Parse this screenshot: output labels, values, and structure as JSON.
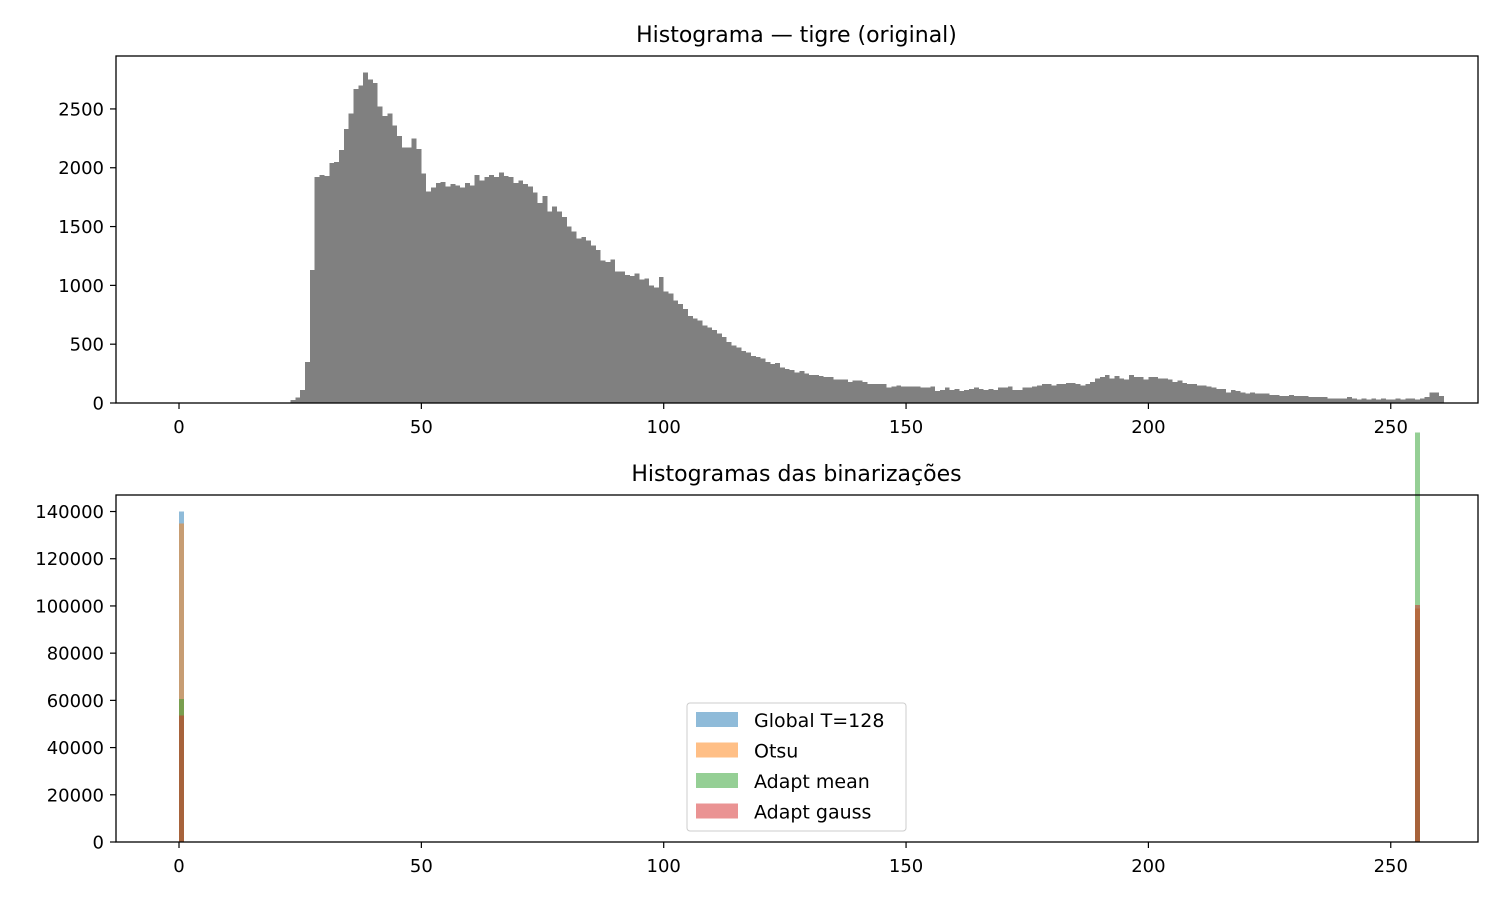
{
  "chart_data": [
    {
      "type": "bar",
      "title": "Histograma — tigre (original)",
      "xlabel": "",
      "ylabel": "",
      "xlim": [
        -13,
        268
      ],
      "ylim": [
        0,
        2950
      ],
      "xticks": [
        0,
        50,
        100,
        150,
        200,
        250
      ],
      "yticks": [
        0,
        500,
        1000,
        1500,
        2000,
        2500
      ],
      "bin_width": 1,
      "grid": false,
      "color": "#808080",
      "x_start": 0,
      "values": [
        0,
        0,
        0,
        0,
        0,
        0,
        0,
        0,
        0,
        0,
        0,
        0,
        0,
        0,
        0,
        0,
        0,
        0,
        0,
        0,
        0,
        0,
        5,
        25,
        45,
        110,
        350,
        1130,
        1920,
        1940,
        1930,
        2040,
        2050,
        2150,
        2330,
        2460,
        2670,
        2700,
        2810,
        2750,
        2720,
        2520,
        2440,
        2460,
        2360,
        2270,
        2170,
        2170,
        2250,
        2160,
        1950,
        1800,
        1830,
        1870,
        1880,
        1840,
        1860,
        1850,
        1830,
        1870,
        1850,
        1940,
        1890,
        1920,
        1940,
        1920,
        1960,
        1930,
        1920,
        1870,
        1890,
        1860,
        1840,
        1790,
        1700,
        1760,
        1630,
        1670,
        1630,
        1580,
        1500,
        1460,
        1400,
        1410,
        1380,
        1340,
        1300,
        1210,
        1200,
        1220,
        1120,
        1120,
        1090,
        1080,
        1100,
        1050,
        1060,
        1000,
        980,
        1070,
        950,
        930,
        870,
        840,
        800,
        740,
        720,
        700,
        660,
        640,
        620,
        590,
        560,
        520,
        490,
        470,
        440,
        430,
        400,
        390,
        380,
        350,
        330,
        340,
        300,
        290,
        280,
        260,
        270,
        250,
        240,
        240,
        230,
        220,
        220,
        200,
        200,
        200,
        180,
        190,
        190,
        180,
        160,
        160,
        160,
        160,
        130,
        140,
        150,
        140,
        140,
        140,
        140,
        130,
        130,
        140,
        100,
        110,
        130,
        110,
        120,
        100,
        110,
        120,
        130,
        120,
        110,
        120,
        110,
        130,
        130,
        140,
        110,
        110,
        130,
        130,
        140,
        150,
        160,
        160,
        150,
        160,
        160,
        170,
        170,
        160,
        150,
        160,
        180,
        210,
        220,
        240,
        210,
        230,
        210,
        200,
        240,
        220,
        220,
        200,
        220,
        220,
        210,
        210,
        200,
        180,
        190,
        170,
        160,
        160,
        150,
        150,
        140,
        130,
        120,
        120,
        90,
        110,
        100,
        90,
        80,
        90,
        80,
        80,
        80,
        70,
        70,
        60,
        60,
        70,
        60,
        60,
        60,
        50,
        50,
        50,
        50,
        40,
        40,
        40,
        40,
        50,
        40,
        30,
        40,
        30,
        40,
        30,
        40,
        30,
        30,
        40,
        30,
        40,
        40,
        30,
        40,
        50,
        90,
        90,
        60
      ]
    },
    {
      "type": "bar",
      "title": "Histogramas das binarizações",
      "xlabel": "",
      "ylabel": "",
      "xlim": [
        -13,
        268
      ],
      "ylim": [
        0,
        147000
      ],
      "xticks": [
        0,
        50,
        100,
        150,
        200,
        250
      ],
      "yticks": [
        0,
        20000,
        40000,
        60000,
        80000,
        100000,
        120000,
        140000
      ],
      "bin_width": 1,
      "grid": false,
      "legend_position": "center-bottom",
      "series": [
        {
          "name": "Global T=128",
          "color": "#1f77b4",
          "opacity": 0.5,
          "bins": [
            0,
            255
          ],
          "values": [
            140000,
            94000
          ]
        },
        {
          "name": "Otsu",
          "color": "#ff7f0e",
          "opacity": 0.5,
          "bins": [
            0,
            255
          ],
          "values": [
            135000,
            99000
          ]
        },
        {
          "name": "Adapt mean",
          "color": "#2ca02c",
          "opacity": 0.5,
          "bins": [
            0,
            255
          ],
          "values": [
            60500,
            173500
          ]
        },
        {
          "name": "Adapt gauss",
          "color": "#d62728",
          "opacity": 0.5,
          "bins": [
            0,
            255
          ],
          "values": [
            53500,
            100500
          ]
        }
      ]
    }
  ]
}
